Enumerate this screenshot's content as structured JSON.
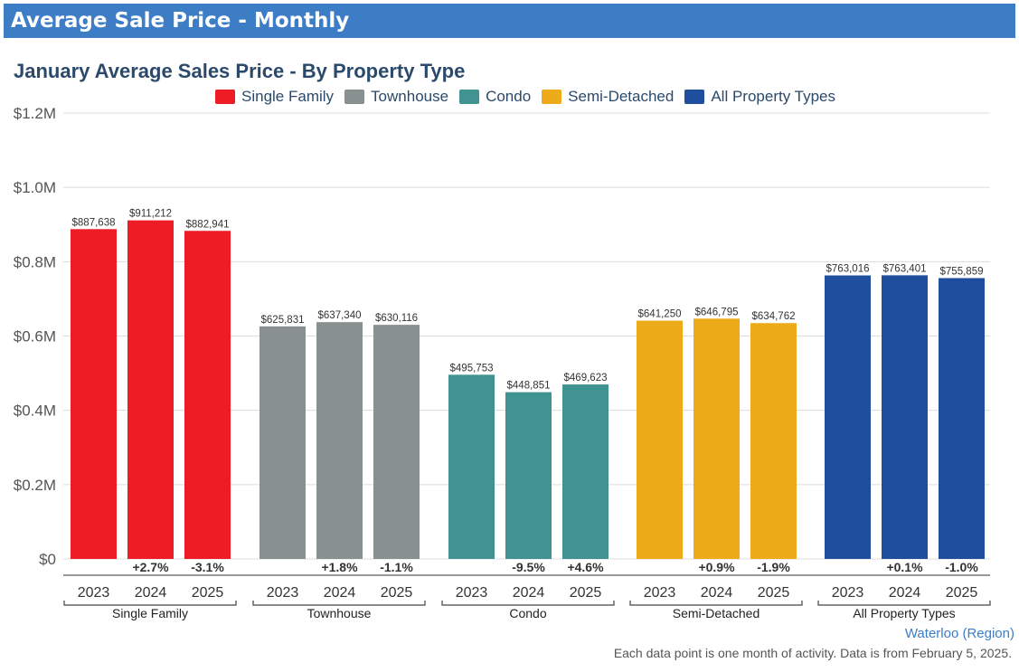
{
  "header": {
    "title": "Average Sale Price - Monthly"
  },
  "chart_data": {
    "type": "bar",
    "title": "January Average Sales Price - By Property Type",
    "xlabel": "",
    "ylabel": "",
    "ylim": [
      0,
      1200000
    ],
    "y_ticks": [
      {
        "value": 0,
        "label": "$0"
      },
      {
        "value": 200000,
        "label": "$0.2M"
      },
      {
        "value": 400000,
        "label": "$0.4M"
      },
      {
        "value": 600000,
        "label": "$0.6M"
      },
      {
        "value": 800000,
        "label": "$0.8M"
      },
      {
        "value": 1000000,
        "label": "$1.0M"
      },
      {
        "value": 1200000,
        "label": "$1.2M"
      }
    ],
    "grid": true,
    "legend_position": "top-center",
    "categories": [
      "2023",
      "2024",
      "2025"
    ],
    "groups": [
      {
        "name": "Single Family",
        "color": "#ee1c25",
        "values": [
          887638,
          911212,
          882941
        ],
        "value_labels": [
          "$887,638",
          "$911,212",
          "$882,941"
        ],
        "changes": [
          "",
          "+2.7%",
          "-3.1%"
        ]
      },
      {
        "name": "Townhouse",
        "color": "#889190",
        "values": [
          625831,
          637340,
          630116
        ],
        "value_labels": [
          "$625,831",
          "$637,340",
          "$630,116"
        ],
        "changes": [
          "",
          "+1.8%",
          "-1.1%"
        ]
      },
      {
        "name": "Condo",
        "color": "#419391",
        "values": [
          495753,
          448851,
          469623
        ],
        "value_labels": [
          "$495,753",
          "$448,851",
          "$469,623"
        ],
        "changes": [
          "",
          "-9.5%",
          "+4.6%"
        ]
      },
      {
        "name": "Semi-Detached",
        "color": "#edab19",
        "values": [
          641250,
          646795,
          634762
        ],
        "value_labels": [
          "$641,250",
          "$646,795",
          "$634,762"
        ],
        "changes": [
          "",
          "+0.9%",
          "-1.9%"
        ]
      },
      {
        "name": "All Property Types",
        "color": "#1f4e9e",
        "values": [
          763016,
          763401,
          755859
        ],
        "value_labels": [
          "$763,016",
          "$763,401",
          "$755,859"
        ],
        "changes": [
          "",
          "+0.1%",
          "-1.0%"
        ]
      }
    ]
  },
  "region": "Waterloo (Region)",
  "footnote": "Each data point is one month of activity. Data is from February 5, 2025."
}
